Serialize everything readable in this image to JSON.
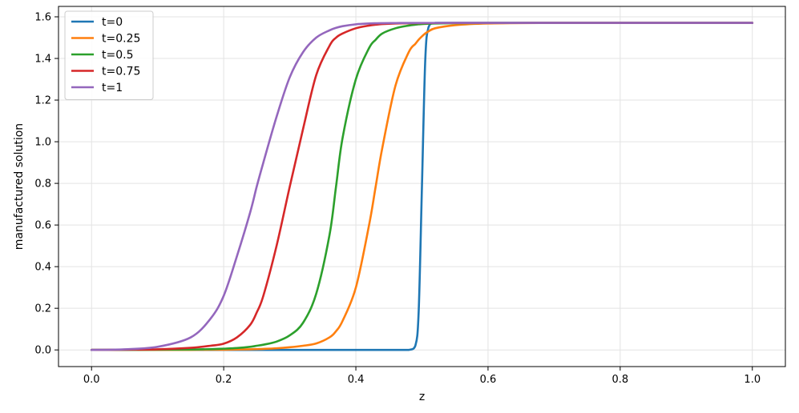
{
  "chart_data": {
    "type": "line",
    "xlabel": "z",
    "ylabel": "manufactured solution",
    "xlim": [
      -0.05,
      1.05
    ],
    "ylim": [
      -0.08,
      1.65
    ],
    "xticks": [
      0.0,
      0.2,
      0.4,
      0.6,
      0.8,
      1.0
    ],
    "xtick_labels": [
      "0.0",
      "0.2",
      "0.4",
      "0.6",
      "0.8",
      "1.0"
    ],
    "yticks": [
      0.0,
      0.2,
      0.4,
      0.6,
      0.8,
      1.0,
      1.2,
      1.4,
      1.6
    ],
    "ytick_labels": [
      "0.0",
      "0.2",
      "0.4",
      "0.6",
      "0.8",
      "1.0",
      "1.2",
      "1.4",
      "1.6"
    ],
    "grid": true,
    "legend_position": "upper-left",
    "x": [
      0.0,
      0.05,
      0.1,
      0.15,
      0.18,
      0.2,
      0.22,
      0.24,
      0.25,
      0.26,
      0.28,
      0.3,
      0.32,
      0.34,
      0.36,
      0.37,
      0.38,
      0.4,
      0.42,
      0.43,
      0.44,
      0.46,
      0.48,
      0.49,
      0.495,
      0.5,
      0.505,
      0.51,
      0.52,
      0.55,
      0.6,
      0.7,
      0.8,
      0.9,
      1.0
    ],
    "series": [
      {
        "name": "t=0",
        "color": "#1f77b4",
        "values": [
          0,
          0,
          0,
          0,
          0,
          0,
          0,
          0,
          0,
          0,
          0,
          0,
          0,
          0,
          0,
          0,
          0,
          0,
          0,
          0,
          0,
          0,
          0,
          0.02,
          0.18,
          0.785,
          1.39,
          1.55,
          1.5708,
          1.5708,
          1.5708,
          1.5708,
          1.5708,
          1.5708,
          1.5708
        ]
      },
      {
        "name": "t=0.25",
        "color": "#ff7f0e",
        "values": [
          0,
          0,
          0,
          0,
          0.001,
          0.001,
          0.002,
          0.003,
          0.004,
          0.005,
          0.008,
          0.013,
          0.02,
          0.031,
          0.06,
          0.09,
          0.14,
          0.3,
          0.6,
          0.785,
          0.97,
          1.27,
          1.43,
          1.47,
          1.49,
          1.506,
          1.52,
          1.53,
          1.545,
          1.56,
          1.568,
          1.5708,
          1.5708,
          1.5708,
          1.5708
        ]
      },
      {
        "name": "t=0.5",
        "color": "#2ca02c",
        "values": [
          0,
          0,
          0.001,
          0.002,
          0.004,
          0.006,
          0.009,
          0.015,
          0.02,
          0.025,
          0.04,
          0.07,
          0.13,
          0.27,
          0.55,
          0.785,
          1.02,
          1.3,
          1.45,
          1.49,
          1.52,
          1.545,
          1.558,
          1.562,
          1.564,
          1.565,
          1.566,
          1.567,
          1.568,
          1.5695,
          1.5705,
          1.5708,
          1.5708,
          1.5708,
          1.5708
        ]
      },
      {
        "name": "t=0.75",
        "color": "#d62728",
        "values": [
          0,
          0.001,
          0.003,
          0.01,
          0.02,
          0.03,
          0.06,
          0.12,
          0.18,
          0.26,
          0.5,
          0.785,
          1.06,
          1.32,
          1.46,
          1.5,
          1.52,
          1.545,
          1.558,
          1.562,
          1.565,
          1.568,
          1.569,
          1.5695,
          1.5697,
          1.5699,
          1.57,
          1.5701,
          1.5702,
          1.5705,
          1.5707,
          1.5708,
          1.5708,
          1.5708,
          1.5708
        ]
      },
      {
        "name": "t=1",
        "color": "#9467bd",
        "values": [
          0,
          0.003,
          0.015,
          0.06,
          0.15,
          0.26,
          0.45,
          0.66,
          0.785,
          0.9,
          1.12,
          1.31,
          1.43,
          1.5,
          1.535,
          1.547,
          1.555,
          1.564,
          1.568,
          1.569,
          1.5695,
          1.5702,
          1.5705,
          1.5706,
          1.5706,
          1.5707,
          1.5707,
          1.5707,
          1.5707,
          1.5708,
          1.5708,
          1.5708,
          1.5708,
          1.5708,
          1.5708
        ]
      }
    ]
  }
}
